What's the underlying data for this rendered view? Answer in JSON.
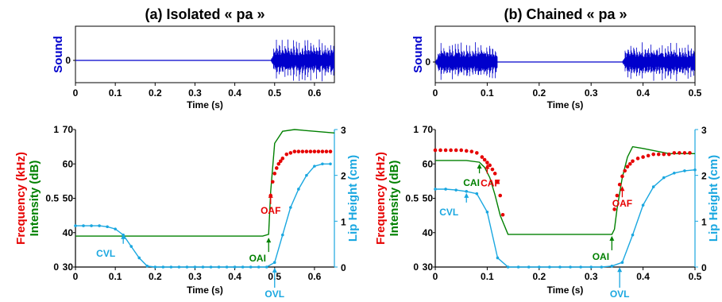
{
  "colors": {
    "sound": "#0000cc",
    "intensity": "#008000",
    "frequency": "#e60000",
    "lip": "#1aa7e0",
    "axis": "#000000"
  },
  "panels": [
    {
      "title": "(a) Isolated « pa »"
    },
    {
      "title": "(b) Chained « pa »"
    }
  ],
  "chart_data": [
    {
      "type": "line",
      "title": "(a) Isolated « pa »",
      "ylabel": "Sound",
      "xlabel": "Time (s)",
      "xlim": [
        0,
        0.65
      ],
      "xticks": [
        "0",
        "0.1",
        "0.2",
        "0.3",
        "0.4",
        "0.5",
        "0.6"
      ],
      "ytick_label": "0",
      "series": [
        {
          "name": "Sound",
          "voiced": [
            [
              0.49,
              0.65
            ]
          ],
          "peak": 1.0
        }
      ]
    },
    {
      "type": "line",
      "title": "(b) Chained « pa »",
      "ylabel": "Sound",
      "xlabel": "Time (s)",
      "xlim": [
        0,
        0.5
      ],
      "xticks": [
        "0",
        "0.1",
        "0.2",
        "0.3",
        "0.4",
        "0.5"
      ],
      "ytick_label": "0",
      "series": [
        {
          "name": "Sound",
          "voiced": [
            [
              0,
              0.12
            ],
            [
              0.36,
              0.5
            ]
          ],
          "peak": 1.0
        }
      ]
    },
    {
      "type": "line",
      "xlabel": "Time (s)",
      "xlim": [
        0,
        0.65
      ],
      "xticks": [
        "0",
        "0.1",
        "0.2",
        "0.3",
        "0.4",
        "0.5",
        "0.6"
      ],
      "y_left_label_frequency": "Frequency (kHz)",
      "y_left_label_intensity": "Intensity (dB)",
      "y_right_label": "Lip Height (cm)",
      "freq_ticks": [
        "0",
        "0.5",
        "1"
      ],
      "intensity_ticks": [
        "30",
        "40",
        "50",
        "60",
        "70"
      ],
      "lip_ticks": [
        "0",
        "1",
        "2",
        "3"
      ],
      "intensity": {
        "x": [
          0,
          0.1,
          0.2,
          0.3,
          0.47,
          0.485,
          0.49,
          0.5,
          0.52,
          0.55,
          0.6,
          0.65
        ],
        "y": [
          39,
          39,
          39,
          39,
          39,
          39.5,
          52,
          66,
          69.5,
          70,
          69.5,
          69
        ]
      },
      "frequency": {
        "x": [
          0.49,
          0.495,
          0.5,
          0.505,
          0.51,
          0.515,
          0.52,
          0.53,
          0.54,
          0.55,
          0.56,
          0.57,
          0.58,
          0.59,
          0.6,
          0.61,
          0.62,
          0.63,
          0.64
        ],
        "y": [
          0.52,
          0.62,
          0.68,
          0.72,
          0.75,
          0.77,
          0.79,
          0.82,
          0.83,
          0.84,
          0.84,
          0.84,
          0.84,
          0.84,
          0.84,
          0.84,
          0.84,
          0.84,
          0.84
        ]
      },
      "lip": {
        "x": [
          0,
          0.02,
          0.04,
          0.06,
          0.08,
          0.1,
          0.12,
          0.14,
          0.16,
          0.18,
          0.2,
          0.22,
          0.24,
          0.26,
          0.28,
          0.3,
          0.32,
          0.34,
          0.36,
          0.38,
          0.4,
          0.42,
          0.44,
          0.46,
          0.48,
          0.5,
          0.52,
          0.54,
          0.56,
          0.58,
          0.6,
          0.62,
          0.64
        ],
        "y": [
          0.9,
          0.9,
          0.9,
          0.9,
          0.88,
          0.83,
          0.7,
          0.45,
          0.2,
          0.02,
          0,
          0,
          0,
          0,
          0,
          0,
          0,
          0,
          0,
          0,
          0,
          0,
          0,
          0,
          0,
          0.1,
          0.7,
          1.3,
          1.7,
          2.0,
          2.2,
          2.25,
          2.25
        ]
      },
      "annotations": [
        {
          "text": "CVL",
          "x": 0.12,
          "y_lip": 0.75,
          "color": "lip"
        },
        {
          "text": "OAI",
          "x": 0.485,
          "y_int": 39,
          "color": "intensity"
        },
        {
          "text": "OAF",
          "x": 0.49,
          "y_freq": 0.55,
          "color": "frequency"
        },
        {
          "text": "OVL",
          "x": 0.5,
          "y_lip": 0.02,
          "color": "lip"
        }
      ]
    },
    {
      "type": "line",
      "xlabel": "Time (s)",
      "xlim": [
        0,
        0.5
      ],
      "xticks": [
        "0",
        "0.1",
        "0.2",
        "0.3",
        "0.4",
        "0.5"
      ],
      "y_left_label_frequency": "Frequency (kHz)",
      "y_left_label_intensity": "Intensity (dB)",
      "y_right_label": "Lip Height (cm)",
      "freq_ticks": [
        "0",
        "0.5",
        "1"
      ],
      "intensity_ticks": [
        "30",
        "40",
        "50",
        "60",
        "70"
      ],
      "lip_ticks": [
        "0",
        "1",
        "2",
        "3"
      ],
      "intensity": {
        "x": [
          0,
          0.06,
          0.085,
          0.095,
          0.105,
          0.115,
          0.125,
          0.14,
          0.2,
          0.3,
          0.34,
          0.345,
          0.35,
          0.36,
          0.37,
          0.38,
          0.4,
          0.45,
          0.5
        ],
        "y": [
          61,
          61,
          60.5,
          59,
          56,
          51,
          45,
          39.5,
          39.5,
          39.5,
          39.5,
          41,
          47,
          56,
          62,
          65,
          64.5,
          63,
          63
        ]
      },
      "frequency": {
        "x": [
          0,
          0.01,
          0.02,
          0.03,
          0.04,
          0.05,
          0.06,
          0.07,
          0.08,
          0.09,
          0.095,
          0.1,
          0.105,
          0.11,
          0.115,
          0.12,
          0.125,
          0.13,
          0.345,
          0.35,
          0.355,
          0.36,
          0.365,
          0.37,
          0.375,
          0.38,
          0.39,
          0.4,
          0.41,
          0.42,
          0.43,
          0.44,
          0.45,
          0.46,
          0.47,
          0.48,
          0.49
        ],
        "y": [
          0.85,
          0.85,
          0.85,
          0.85,
          0.85,
          0.85,
          0.845,
          0.84,
          0.83,
          0.8,
          0.78,
          0.76,
          0.74,
          0.71,
          0.68,
          0.62,
          0.52,
          0.38,
          0.42,
          0.52,
          0.6,
          0.66,
          0.7,
          0.73,
          0.75,
          0.77,
          0.79,
          0.8,
          0.81,
          0.82,
          0.82,
          0.82,
          0.82,
          0.83,
          0.83,
          0.83,
          0.83
        ]
      },
      "lip": {
        "x": [
          0,
          0.02,
          0.04,
          0.06,
          0.08,
          0.1,
          0.12,
          0.14,
          0.16,
          0.18,
          0.2,
          0.22,
          0.24,
          0.26,
          0.28,
          0.3,
          0.32,
          0.34,
          0.36,
          0.38,
          0.4,
          0.42,
          0.44,
          0.46,
          0.48,
          0.5
        ],
        "y": [
          1.7,
          1.7,
          1.68,
          1.65,
          1.6,
          1.2,
          0.2,
          0,
          0,
          0,
          0,
          0,
          0,
          0,
          0,
          0,
          0,
          0.02,
          0.1,
          0.7,
          1.35,
          1.75,
          1.95,
          2.05,
          2.1,
          2.12
        ]
      },
      "annotations": [
        {
          "text": "CAI",
          "x": 0.085,
          "y_int": 60.5,
          "color": "intensity"
        },
        {
          "text": "CAF",
          "x": 0.1,
          "y_freq": 0.76,
          "color": "frequency"
        },
        {
          "text": "CVL",
          "x": 0.06,
          "y_lip": 1.65,
          "color": "lip"
        },
        {
          "text": "OAI",
          "x": 0.34,
          "y_int": 39.5,
          "color": "intensity"
        },
        {
          "text": "OAF",
          "x": 0.36,
          "y_freq": 0.6,
          "color": "frequency"
        },
        {
          "text": "OVL",
          "x": 0.355,
          "y_lip": 0.03,
          "color": "lip"
        }
      ]
    }
  ]
}
